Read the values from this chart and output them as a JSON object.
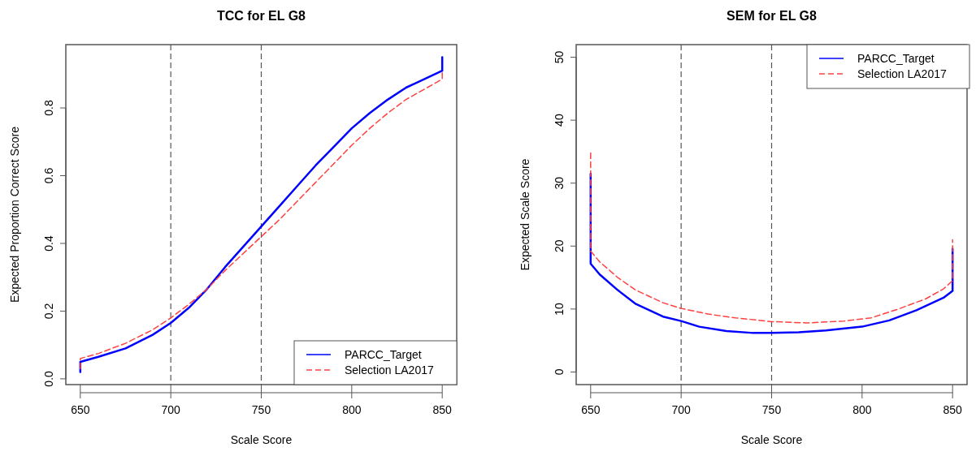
{
  "chart_data": [
    {
      "type": "line",
      "title": "TCC for EL G8",
      "xlabel": "Scale Score",
      "ylabel": "Expected Proportion Correct Score",
      "xlim": [
        642,
        858
      ],
      "xticks": [
        650,
        700,
        750,
        800,
        850
      ],
      "ylim": [
        -0.017,
        0.987
      ],
      "yticks": [
        {
          "value": 0,
          "label": "0.0"
        },
        {
          "value": 0.2,
          "label": "0.2"
        },
        {
          "value": 0.4,
          "label": "0.4"
        },
        {
          "value": 0.6,
          "label": "0.6"
        },
        {
          "value": 0.8,
          "label": "0.8"
        }
      ],
      "legend": "bottom right",
      "grid": false,
      "ref_lines": [
        {
          "axis": "x",
          "value": 700,
          "color": "#555555",
          "line_style": "dashed"
        },
        {
          "axis": "x",
          "value": 750,
          "color": "#555555",
          "line_style": "dashed"
        }
      ],
      "series": [
        {
          "name": "PARCC_Target",
          "color": "#0000ff",
          "line_style": "solid",
          "x": [
            650,
            650,
            660,
            675,
            690,
            700,
            710,
            720,
            730,
            740,
            750,
            760,
            770,
            780,
            790,
            800,
            810,
            820,
            830,
            840,
            850,
            850
          ],
          "values": [
            0.02,
            0.05,
            0.065,
            0.09,
            0.13,
            0.165,
            0.21,
            0.265,
            0.33,
            0.39,
            0.45,
            0.51,
            0.57,
            0.63,
            0.685,
            0.74,
            0.785,
            0.825,
            0.86,
            0.885,
            0.91,
            0.95
          ]
        },
        {
          "name": "Selection LA2017",
          "color": "#ff4040",
          "line_style": "dashed",
          "x": [
            650,
            650,
            660,
            675,
            690,
            700,
            710,
            720,
            730,
            740,
            750,
            760,
            770,
            780,
            790,
            800,
            810,
            820,
            830,
            840,
            850,
            850
          ],
          "values": [
            0.03,
            0.06,
            0.075,
            0.105,
            0.145,
            0.18,
            0.22,
            0.265,
            0.32,
            0.37,
            0.42,
            0.47,
            0.525,
            0.58,
            0.635,
            0.69,
            0.74,
            0.785,
            0.825,
            0.855,
            0.885,
            0.91
          ]
        }
      ]
    },
    {
      "type": "line",
      "title": "SEM for EL G8",
      "xlabel": "Scale Score",
      "ylabel": "Expected Scale Score",
      "xlim": [
        642,
        858
      ],
      "xticks": [
        650,
        700,
        750,
        800,
        850
      ],
      "ylim": [
        -2,
        52
      ],
      "yticks": [
        0,
        10,
        20,
        30,
        40,
        50
      ],
      "legend": "top right",
      "grid": false,
      "ref_lines": [
        {
          "axis": "x",
          "value": 700,
          "color": "#555555",
          "line_style": "dashed"
        },
        {
          "axis": "x",
          "value": 750,
          "color": "#555555",
          "line_style": "dashed"
        }
      ],
      "series": [
        {
          "name": "PARCC_Target",
          "color": "#0000ff",
          "line_style": "solid",
          "x": [
            650,
            650,
            655,
            665,
            675,
            690,
            700,
            710,
            725,
            740,
            750,
            765,
            780,
            800,
            815,
            830,
            845,
            850,
            850
          ],
          "values": [
            31.5,
            17.2,
            15.5,
            13,
            10.8,
            8.8,
            8.1,
            7.2,
            6.5,
            6.2,
            6.2,
            6.3,
            6.6,
            7.2,
            8.2,
            9.8,
            11.8,
            12.9,
            19.6
          ]
        },
        {
          "name": "Selection LA2017",
          "color": "#ff4040",
          "line_style": "dashed",
          "x": [
            650,
            650,
            655,
            665,
            675,
            690,
            700,
            715,
            730,
            750,
            770,
            790,
            805,
            820,
            835,
            845,
            850,
            850
          ],
          "values": [
            34.8,
            19.2,
            17.5,
            15,
            13,
            11,
            10.1,
            9.2,
            8.6,
            8,
            7.8,
            8.1,
            8.6,
            10,
            11.6,
            13.2,
            14.5,
            21
          ]
        }
      ]
    }
  ]
}
